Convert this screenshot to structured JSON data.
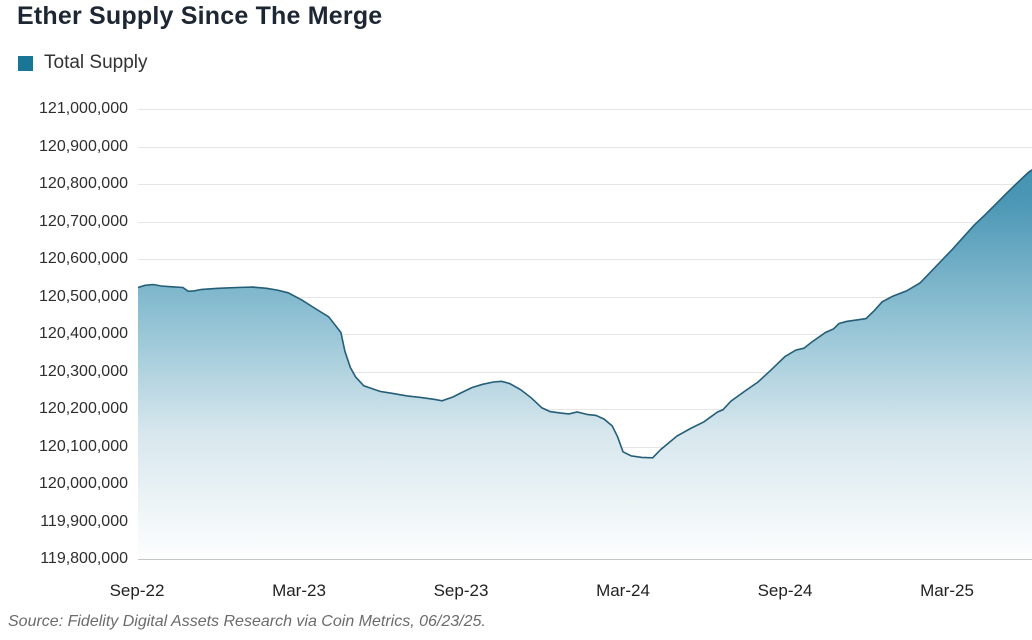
{
  "title": "Ether Supply Since The Merge",
  "legend": {
    "label": "Total Supply",
    "swatch_color": "#1a7697"
  },
  "source": "Source: Fidelity Digital Assets Research via Coin Metrics, 06/23/25.",
  "chart_data": {
    "type": "area",
    "title": "Ether Supply Since The Merge",
    "legend_entries": [
      "Total Supply"
    ],
    "grid": "horizontal-only",
    "legend_position": "top-left",
    "ylabel": "",
    "xlabel": "",
    "ylim": [
      119800000,
      121000000
    ],
    "y_axis": {
      "min": 119800000,
      "max": 121000000,
      "step": 100000,
      "tick_labels": [
        "121,000,000",
        "120,900,000",
        "120,800,000",
        "120,700,000",
        "120,600,000",
        "120,500,000",
        "120,400,000",
        "120,300,000",
        "120,200,000",
        "120,100,000",
        "120,000,000",
        "119,900,000",
        "119,800,000"
      ]
    },
    "x_axis": {
      "unit": "months since the Merge (Sep-2022)",
      "range_months": [
        0,
        33.2
      ],
      "ticks": [
        {
          "label": "Sep-22",
          "m": 0
        },
        {
          "label": "Mar-23",
          "m": 6
        },
        {
          "label": "Sep-23",
          "m": 12
        },
        {
          "label": "Mar-24",
          "m": 18
        },
        {
          "label": "Sep-24",
          "m": 24
        },
        {
          "label": "Mar-25",
          "m": 30
        }
      ]
    },
    "series": [
      {
        "name": "Total Supply",
        "points": [
          [
            0,
            120524000
          ],
          [
            0.3,
            120530000
          ],
          [
            0.6,
            120532000
          ],
          [
            0.9,
            120528000
          ],
          [
            1.3,
            120526000
          ],
          [
            1.7,
            120524000
          ],
          [
            1.9,
            120514000
          ],
          [
            2.1,
            120515000
          ],
          [
            2.4,
            120519000
          ],
          [
            3,
            120522000
          ],
          [
            3.7,
            120524000
          ],
          [
            4.3,
            120525000
          ],
          [
            4.8,
            120522000
          ],
          [
            5.2,
            120517000
          ],
          [
            5.6,
            120510000
          ],
          [
            6.1,
            120491000
          ],
          [
            6.6,
            120468000
          ],
          [
            7.1,
            120446000
          ],
          [
            7.55,
            120404000
          ],
          [
            7.7,
            120354000
          ],
          [
            7.9,
            120311000
          ],
          [
            8.1,
            120285000
          ],
          [
            8.4,
            120262000
          ],
          [
            9,
            120247000
          ],
          [
            9.5,
            120241000
          ],
          [
            10,
            120235000
          ],
          [
            10.5,
            120231000
          ],
          [
            11,
            120226000
          ],
          [
            11.3,
            120222000
          ],
          [
            11.7,
            120232000
          ],
          [
            12,
            120243000
          ],
          [
            12.4,
            120257000
          ],
          [
            12.8,
            120266000
          ],
          [
            13.2,
            120272000
          ],
          [
            13.5,
            120274000
          ],
          [
            13.8,
            120268000
          ],
          [
            14.2,
            120252000
          ],
          [
            14.6,
            120230000
          ],
          [
            15,
            120203000
          ],
          [
            15.3,
            120193000
          ],
          [
            15.7,
            120189000
          ],
          [
            16,
            120187000
          ],
          [
            16.3,
            120192000
          ],
          [
            16.7,
            120185000
          ],
          [
            17,
            120183000
          ],
          [
            17.3,
            120173000
          ],
          [
            17.6,
            120155000
          ],
          [
            17.8,
            120126000
          ],
          [
            18,
            120086000
          ],
          [
            18.3,
            120075000
          ],
          [
            18.7,
            120071000
          ],
          [
            19.1,
            120070000
          ],
          [
            19.4,
            120092000
          ],
          [
            19.6,
            120104000
          ],
          [
            20,
            120128000
          ],
          [
            20.5,
            120148000
          ],
          [
            21,
            120166000
          ],
          [
            21.5,
            120192000
          ],
          [
            21.7,
            120198000
          ],
          [
            22,
            120221000
          ],
          [
            22.5,
            120247000
          ],
          [
            23,
            120272000
          ],
          [
            23.5,
            120305000
          ],
          [
            24,
            120340000
          ],
          [
            24.4,
            120357000
          ],
          [
            24.7,
            120362000
          ],
          [
            25,
            120379000
          ],
          [
            25.5,
            120404000
          ],
          [
            25.8,
            120414000
          ],
          [
            26,
            120428000
          ],
          [
            26.3,
            120434000
          ],
          [
            26.7,
            120438000
          ],
          [
            27,
            120441000
          ],
          [
            27.3,
            120462000
          ],
          [
            27.6,
            120486000
          ],
          [
            28,
            120501000
          ],
          [
            28.5,
            120515000
          ],
          [
            29,
            120536000
          ],
          [
            29.4,
            120566000
          ],
          [
            29.8,
            120596000
          ],
          [
            30.2,
            120626000
          ],
          [
            30.6,
            120658000
          ],
          [
            31,
            120690000
          ],
          [
            31.4,
            120717000
          ],
          [
            31.8,
            120746000
          ],
          [
            32.2,
            120775000
          ],
          [
            32.6,
            120803000
          ],
          [
            33,
            120830000
          ],
          [
            33.2,
            120838000
          ]
        ]
      }
    ],
    "colors": {
      "line": "#255e78",
      "fill_gradient": [
        {
          "offset": 0.0,
          "color": "#3d8fb0"
        },
        {
          "offset": 0.2,
          "color": "#4a96b4"
        },
        {
          "offset": 0.45,
          "color": "#8cbfd2"
        },
        {
          "offset": 0.72,
          "color": "#d7e7ed"
        },
        {
          "offset": 1.0,
          "color": "#fdfefe"
        }
      ],
      "gridline": "#e6e6e6",
      "baseline": "#c4c4c4"
    }
  }
}
